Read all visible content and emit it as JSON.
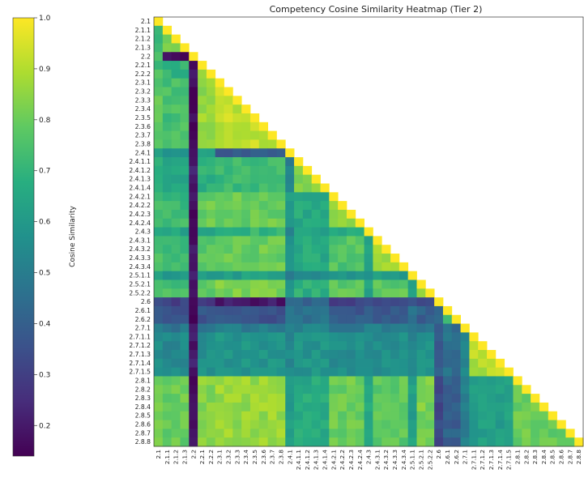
{
  "chart_data": {
    "type": "heatmap",
    "title": "Competency Cosine Similarity Heatmap (Tier 2)",
    "xlabel": "",
    "ylabel": "",
    "colorbar": {
      "label": "Cosine Similarity",
      "min": 0.14,
      "max": 1.0,
      "ticks": [
        0.2,
        0.3,
        0.4,
        0.5,
        0.6,
        0.7,
        0.8,
        0.9,
        1.0
      ],
      "tick_labels": [
        "0.2",
        "0.3",
        "0.4",
        "0.5",
        "0.6",
        "0.7",
        "0.8",
        "0.9",
        "1.0"
      ],
      "colormap": "viridis",
      "placement": "left"
    },
    "triangle": "lower",
    "labels": [
      "2.1",
      "2.1.1",
      "2.1.2",
      "2.1.3",
      "2.2",
      "2.2.1",
      "2.2.2",
      "2.3.1",
      "2.3.2",
      "2.3.3",
      "2.3.4",
      "2.3.5",
      "2.3.6",
      "2.3.7",
      "2.3.8",
      "2.4.1",
      "2.4.1.1",
      "2.4.1.2",
      "2.4.1.3",
      "2.4.1.4",
      "2.4.2.1",
      "2.4.2.2",
      "2.4.2.3",
      "2.4.2.4",
      "2.4.3",
      "2.4.3.1",
      "2.4.3.2",
      "2.4.3.3",
      "2.4.3.4",
      "2.5.1.1",
      "2.5.2.1",
      "2.5.2.2",
      "2.6",
      "2.6.1",
      "2.6.2",
      "2.7.1",
      "2.7.1.1",
      "2.7.1.2",
      "2.7.1.3",
      "2.7.1.4",
      "2.7.1.5",
      "2.8.1",
      "2.8.2",
      "2.8.3",
      "2.8.4",
      "2.8.5",
      "2.8.6",
      "2.8.7",
      "2.8.8"
    ],
    "row_groups": [
      0,
      1,
      1,
      1,
      2,
      3,
      3,
      4,
      4,
      4,
      4,
      4,
      4,
      4,
      4,
      5,
      6,
      6,
      6,
      6,
      7,
      7,
      7,
      7,
      8,
      9,
      9,
      9,
      9,
      10,
      11,
      11,
      12,
      13,
      13,
      14,
      15,
      15,
      15,
      15,
      15,
      16,
      16,
      16,
      16,
      16,
      16,
      16,
      16
    ],
    "group_similarity": [
      [
        1.0,
        0.74,
        0.78,
        0.74,
        0.78,
        0.62,
        0.66,
        0.74,
        0.66,
        0.74,
        0.6,
        0.76,
        0.32,
        0.38,
        0.5,
        0.56,
        0.82
      ],
      [
        0.74,
        0.84,
        0.16,
        0.7,
        0.74,
        0.6,
        0.64,
        0.72,
        0.64,
        0.72,
        0.58,
        0.74,
        0.3,
        0.36,
        0.48,
        0.54,
        0.8
      ],
      [
        0.78,
        0.16,
        1.0,
        0.18,
        0.16,
        0.18,
        0.2,
        0.18,
        0.16,
        0.18,
        0.2,
        0.18,
        0.14,
        0.16,
        0.18,
        0.2,
        0.18
      ],
      [
        0.74,
        0.7,
        0.18,
        0.9,
        0.86,
        0.62,
        0.68,
        0.8,
        0.66,
        0.78,
        0.6,
        0.8,
        0.28,
        0.36,
        0.46,
        0.56,
        0.84
      ],
      [
        0.78,
        0.74,
        0.16,
        0.86,
        0.92,
        0.4,
        0.72,
        0.8,
        0.7,
        0.8,
        0.62,
        0.82,
        0.2,
        0.36,
        0.5,
        0.58,
        0.86
      ],
      [
        0.62,
        0.6,
        0.18,
        0.62,
        0.4,
        1.0,
        0.5,
        0.62,
        0.48,
        0.58,
        0.52,
        0.6,
        0.46,
        0.48,
        0.5,
        0.54,
        0.6
      ],
      [
        0.66,
        0.64,
        0.2,
        0.68,
        0.72,
        0.5,
        0.84,
        0.66,
        0.62,
        0.66,
        0.56,
        0.68,
        0.42,
        0.46,
        0.52,
        0.58,
        0.66
      ],
      [
        0.74,
        0.72,
        0.18,
        0.8,
        0.8,
        0.62,
        0.66,
        0.86,
        0.66,
        0.76,
        0.6,
        0.78,
        0.3,
        0.38,
        0.48,
        0.56,
        0.8
      ],
      [
        0.66,
        0.64,
        0.16,
        0.66,
        0.7,
        0.48,
        0.62,
        0.66,
        1.0,
        0.62,
        0.58,
        0.64,
        0.36,
        0.42,
        0.5,
        0.54,
        0.66
      ],
      [
        0.74,
        0.72,
        0.18,
        0.78,
        0.8,
        0.58,
        0.66,
        0.76,
        0.62,
        0.88,
        0.6,
        0.78,
        0.3,
        0.38,
        0.5,
        0.56,
        0.78
      ],
      [
        0.6,
        0.58,
        0.2,
        0.6,
        0.62,
        0.52,
        0.56,
        0.6,
        0.58,
        0.6,
        1.0,
        0.62,
        0.4,
        0.44,
        0.52,
        0.54,
        0.62
      ],
      [
        0.76,
        0.74,
        0.18,
        0.8,
        0.82,
        0.6,
        0.68,
        0.78,
        0.64,
        0.78,
        0.62,
        0.88,
        0.32,
        0.4,
        0.5,
        0.58,
        0.82
      ],
      [
        0.32,
        0.3,
        0.14,
        0.28,
        0.2,
        0.46,
        0.42,
        0.3,
        0.36,
        0.3,
        0.4,
        0.32,
        1.0,
        0.4,
        0.36,
        0.4,
        0.32
      ],
      [
        0.38,
        0.36,
        0.16,
        0.36,
        0.36,
        0.48,
        0.46,
        0.38,
        0.42,
        0.38,
        0.44,
        0.4,
        0.4,
        0.7,
        0.44,
        0.46,
        0.4
      ],
      [
        0.5,
        0.48,
        0.18,
        0.46,
        0.5,
        0.5,
        0.52,
        0.48,
        0.5,
        0.5,
        0.52,
        0.5,
        0.36,
        0.44,
        1.0,
        0.54,
        0.5
      ],
      [
        0.56,
        0.54,
        0.2,
        0.56,
        0.58,
        0.54,
        0.58,
        0.56,
        0.54,
        0.56,
        0.54,
        0.58,
        0.4,
        0.46,
        0.54,
        0.9,
        0.62
      ],
      [
        0.82,
        0.8,
        0.18,
        0.84,
        0.86,
        0.6,
        0.66,
        0.8,
        0.66,
        0.78,
        0.62,
        0.82,
        0.32,
        0.4,
        0.5,
        0.62,
        0.8
      ]
    ]
  }
}
